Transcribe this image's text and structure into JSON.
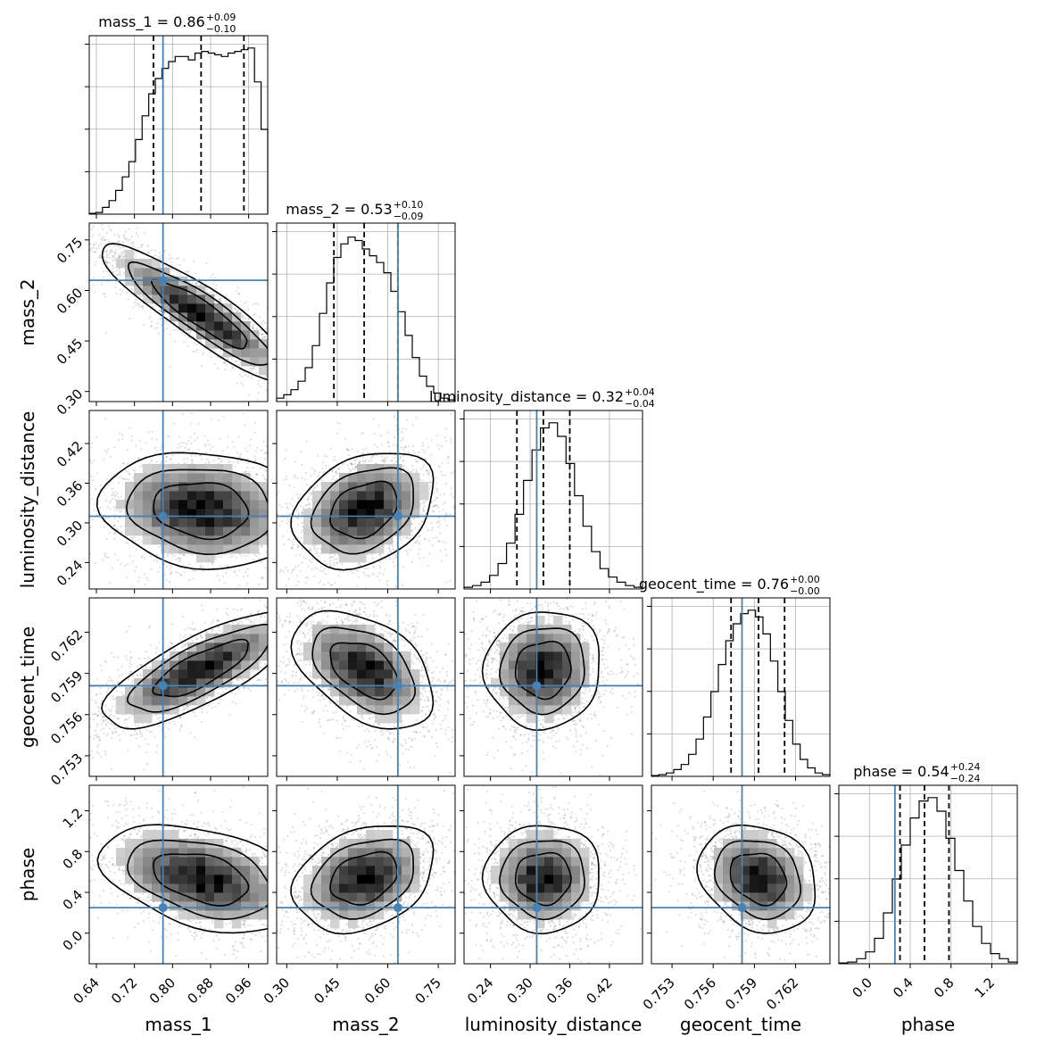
{
  "chart_data": {
    "type": "corner",
    "parameters": [
      {
        "name": "mass_1",
        "title": "mass_1 = 0.86",
        "upper": "+0.09",
        "lower": "−0.10",
        "range": [
          0.625,
          1.0
        ],
        "ticks": [
          0.64,
          0.72,
          0.8,
          0.88,
          0.96
        ],
        "tick_labels": [
          "0.64",
          "0.72",
          "0.80",
          "0.88",
          "0.96"
        ],
        "median": 0.86,
        "q16": 0.76,
        "q84": 0.95,
        "truth": 0.78,
        "hist": [
          0.005,
          0.01,
          0.04,
          0.08,
          0.14,
          0.22,
          0.31,
          0.44,
          0.58,
          0.71,
          0.8,
          0.86,
          0.9,
          0.93,
          0.93,
          0.91,
          0.95,
          0.96,
          0.95,
          0.94,
          0.93,
          0.95,
          0.96,
          0.97,
          0.98,
          0.78,
          0.5
        ]
      },
      {
        "name": "mass_2",
        "title": "mass_2 = 0.53",
        "upper": "+0.10",
        "lower": "−0.09",
        "range": [
          0.27,
          0.8
        ],
        "ticks": [
          0.3,
          0.45,
          0.6,
          0.75
        ],
        "tick_labels": [
          "0.30",
          "0.45",
          "0.60",
          "0.75"
        ],
        "median": 0.53,
        "q16": 0.44,
        "q84": 0.63,
        "truth": 0.63,
        "hist": [
          0.02,
          0.04,
          0.07,
          0.12,
          0.2,
          0.33,
          0.52,
          0.7,
          0.85,
          0.93,
          0.97,
          0.95,
          0.9,
          0.86,
          0.82,
          0.76,
          0.65,
          0.53,
          0.39,
          0.26,
          0.15,
          0.09,
          0.05,
          0.02,
          0.01
        ]
      },
      {
        "name": "luminosity_distance",
        "title": "luminosity_distance = 0.32",
        "upper": "+0.04",
        "lower": "−0.04",
        "range": [
          0.2,
          0.47
        ],
        "ticks": [
          0.24,
          0.3,
          0.36,
          0.42
        ],
        "tick_labels": [
          "0.24",
          "0.30",
          "0.36",
          "0.42"
        ],
        "median": 0.32,
        "q16": 0.28,
        "q84": 0.36,
        "truth": 0.31,
        "hist": [
          0.01,
          0.02,
          0.04,
          0.08,
          0.15,
          0.27,
          0.44,
          0.64,
          0.82,
          0.95,
          0.98,
          0.9,
          0.74,
          0.55,
          0.37,
          0.22,
          0.12,
          0.07,
          0.04,
          0.02,
          0.01
        ]
      },
      {
        "name": "geocent_time",
        "title": "geocent_time = 0.76",
        "upper": "+0.00",
        "lower": "−0.00",
        "range": [
          0.7515,
          0.7645
        ],
        "ticks": [
          0.753,
          0.756,
          0.759,
          0.762
        ],
        "tick_labels": [
          "0.753",
          "0.756",
          "0.759",
          "0.762"
        ],
        "median": 0.7593,
        "q16": 0.7573,
        "q84": 0.7612,
        "truth": 0.7581,
        "hist": [
          0.005,
          0.01,
          0.02,
          0.04,
          0.07,
          0.13,
          0.22,
          0.35,
          0.5,
          0.66,
          0.8,
          0.9,
          0.96,
          0.98,
          0.94,
          0.84,
          0.68,
          0.5,
          0.33,
          0.19,
          0.1,
          0.05,
          0.02,
          0.01
        ]
      },
      {
        "name": "phase",
        "title": "phase = 0.54",
        "upper": "+0.24",
        "lower": "−0.24",
        "range": [
          -0.3,
          1.45
        ],
        "ticks": [
          0.0,
          0.4,
          0.8,
          1.2
        ],
        "tick_labels": [
          "0.0",
          "0.4",
          "0.8",
          "1.2"
        ],
        "median": 0.54,
        "q16": 0.3,
        "q84": 0.78,
        "truth": 0.25,
        "hist": [
          0.005,
          0.01,
          0.03,
          0.07,
          0.15,
          0.3,
          0.5,
          0.7,
          0.86,
          0.96,
          0.98,
          0.9,
          0.74,
          0.55,
          0.37,
          0.22,
          0.12,
          0.06,
          0.03,
          0.01
        ]
      }
    ],
    "correlations": {
      "mass_1|mass_2": -0.9,
      "mass_1|luminosity_distance": -0.12,
      "mass_2|luminosity_distance": 0.3,
      "mass_1|geocent_time": 0.78,
      "mass_2|geocent_time": -0.45,
      "luminosity_distance|geocent_time": 0.05,
      "mass_1|phase": -0.38,
      "mass_2|phase": 0.3,
      "luminosity_distance|phase": 0.0,
      "geocent_time|phase": -0.2
    },
    "colors": {
      "truth": "#4682b4",
      "lines": "#000000",
      "grid": "#b0b0b0"
    },
    "grid": true
  }
}
